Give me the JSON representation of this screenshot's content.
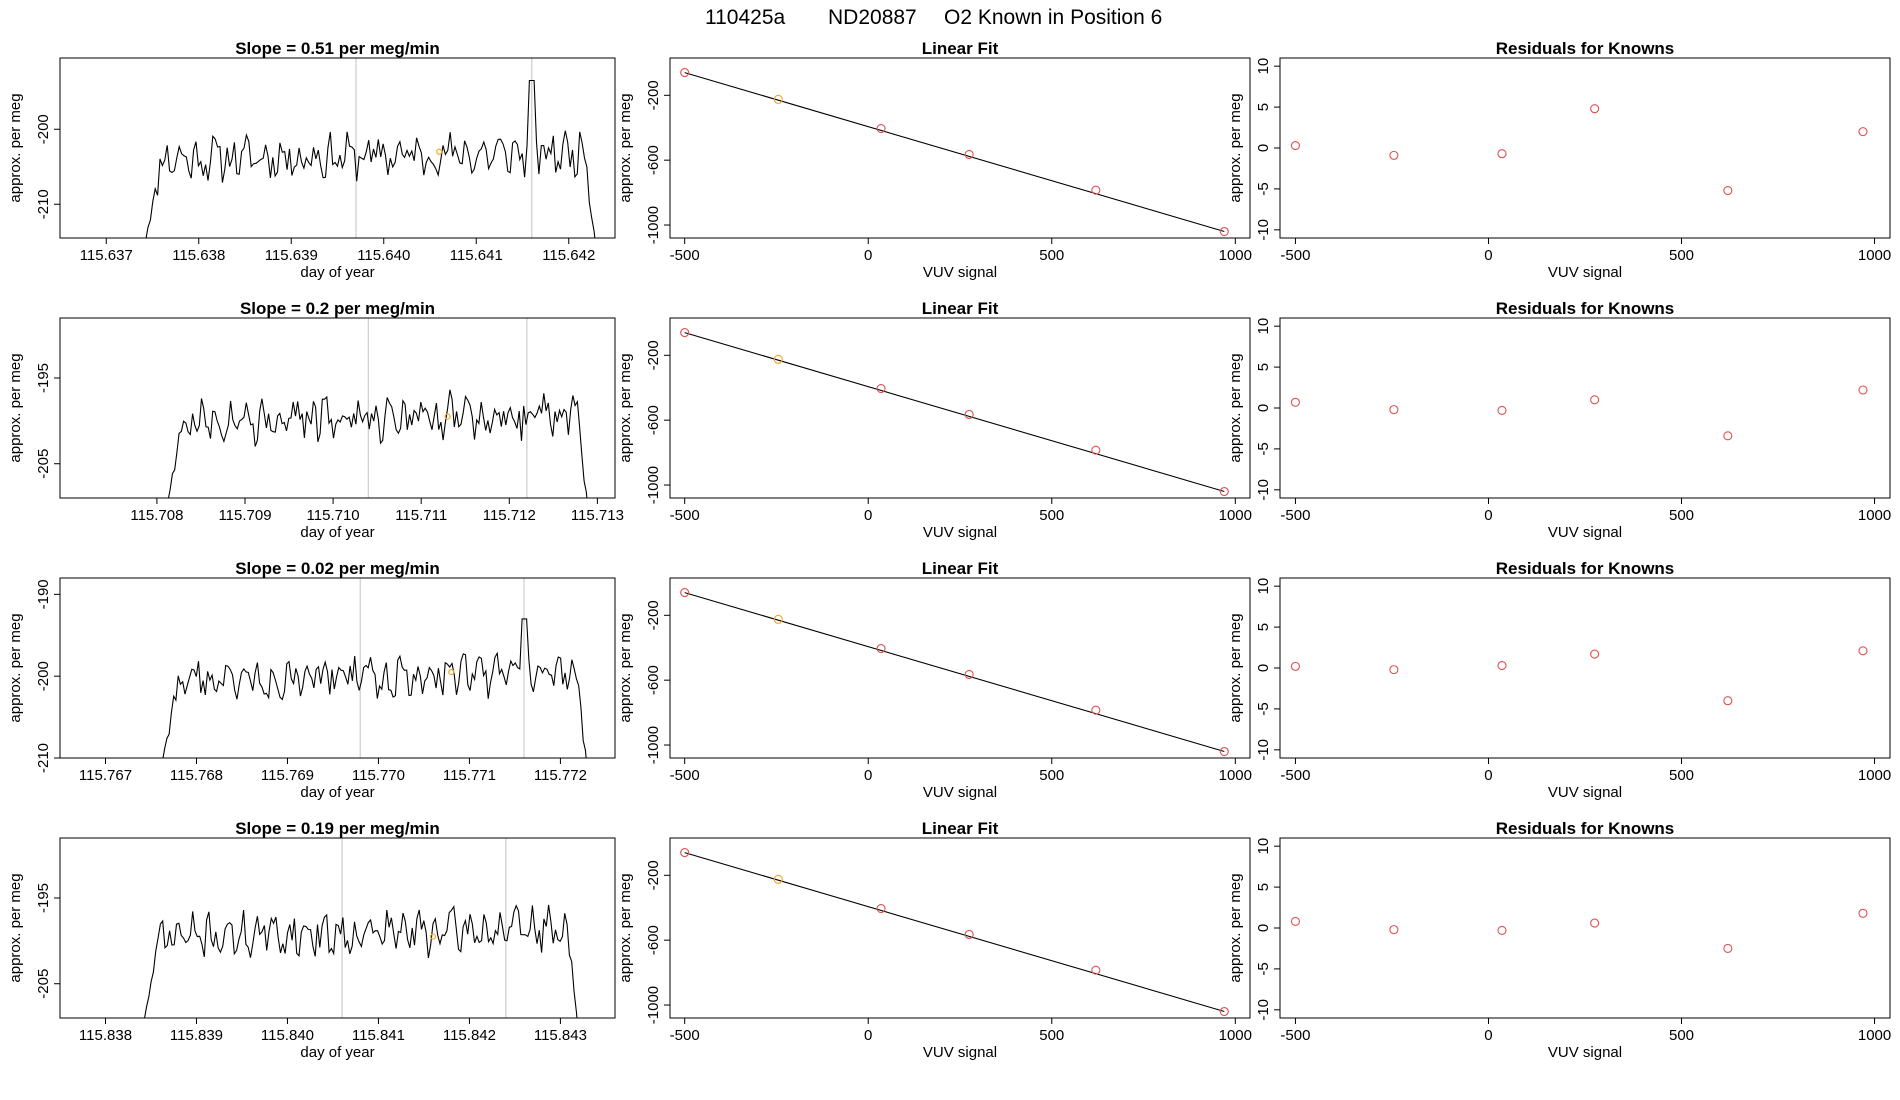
{
  "main_title": [
    "110425a",
    "ND20887",
    "O2 Known in Position  6"
  ],
  "colors": {
    "trace": "#000000",
    "vline": "#cccccc",
    "known_point": "#f5a623",
    "residual_point": "#e05050",
    "fit_line": "#000000"
  },
  "chart_data": [
    {
      "type": "line",
      "panel": "timeseries",
      "row": 1,
      "title": "Slope =  0.51  per meg/min",
      "xlabel": "day of year",
      "ylabel": "approx. per meg",
      "xlim": [
        115.6365,
        115.6425
      ],
      "ylim": [
        -214.5,
        -190.5
      ],
      "xticks": [
        "115.637",
        "115.638",
        "115.639",
        "115.640",
        "115.641",
        "115.642"
      ],
      "yticks": [
        "-200",
        "-210"
      ],
      "start": 115.6374,
      "end": 115.6423,
      "baseline": -204,
      "amplitude": 2.3,
      "seed": 11,
      "spike": {
        "x": 115.6416,
        "y": -193.5
      },
      "vlines": [
        115.6397,
        115.6416
      ],
      "marker": {
        "x": 115.6406,
        "y": -203
      }
    },
    {
      "type": "bar",
      "panel": "linear_fit",
      "row": 1,
      "title": "Linear Fit",
      "xlabel": "VUV signal",
      "ylabel": "approx. per meg",
      "xlim": [
        -540,
        1040
      ],
      "ylim": [
        -1080,
        30
      ],
      "xticks": [
        "-500",
        "0",
        "500",
        "1000"
      ],
      "yticks": [
        "-200",
        "-600",
        "-1000"
      ],
      "x": [
        -500,
        -245,
        35,
        275,
        620,
        970
      ],
      "y": [
        -60,
        -225,
        -405,
        -565,
        -785,
        -1040
      ],
      "highlight": 1
    },
    {
      "type": "scatter",
      "panel": "residuals",
      "row": 1,
      "title": "Residuals for Knowns",
      "xlabel": "VUV signal",
      "ylabel": "approx. per meg",
      "xlim": [
        -540,
        1040
      ],
      "ylim": [
        -11,
        11
      ],
      "xticks": [
        "-500",
        "0",
        "500",
        "1000"
      ],
      "yticks": [
        "10",
        "5",
        "0",
        "-5",
        "-10"
      ],
      "x": [
        -500,
        -245,
        35,
        275,
        620,
        970
      ],
      "y": [
        0.3,
        -0.9,
        -0.7,
        4.8,
        -5.2,
        2.0
      ]
    },
    {
      "type": "line",
      "panel": "timeseries",
      "row": 2,
      "title": "Slope =  0.2  per meg/min",
      "xlabel": "day of year",
      "ylabel": "approx. per meg",
      "xlim": [
        115.7069,
        115.7132
      ],
      "ylim": [
        -209,
        -188
      ],
      "xticks": [
        "115.708",
        "115.709",
        "115.710",
        "115.711",
        "115.712",
        "115.713"
      ],
      "yticks": [
        "-195",
        "-205"
      ],
      "start": 115.7081,
      "end": 115.7129,
      "baseline": -200,
      "amplitude": 2.0,
      "seed": 27,
      "spike": null,
      "vlines": [
        115.7104,
        115.7122
      ],
      "marker": {
        "x": 115.7113,
        "y": -199.5
      }
    },
    {
      "type": "bar",
      "panel": "linear_fit",
      "row": 2,
      "title": "Linear Fit",
      "xlabel": "VUV signal",
      "ylabel": "approx. per meg",
      "xlim": [
        -540,
        1040
      ],
      "ylim": [
        -1080,
        30
      ],
      "xticks": [
        "-500",
        "0",
        "500",
        "1000"
      ],
      "yticks": [
        "-200",
        "-600",
        "-1000"
      ],
      "x": [
        -500,
        -245,
        35,
        275,
        620,
        970
      ],
      "y": [
        -60,
        -225,
        -405,
        -565,
        -785,
        -1040
      ],
      "highlight": 1
    },
    {
      "type": "scatter",
      "panel": "residuals",
      "row": 2,
      "title": "Residuals for Knowns",
      "xlabel": "VUV signal",
      "ylabel": "approx. per meg",
      "xlim": [
        -540,
        1040
      ],
      "ylim": [
        -11,
        11
      ],
      "xticks": [
        "-500",
        "0",
        "500",
        "1000"
      ],
      "yticks": [
        "10",
        "5",
        "0",
        "-5",
        "-10"
      ],
      "x": [
        -500,
        -245,
        35,
        275,
        620,
        970
      ],
      "y": [
        0.7,
        -0.2,
        -0.3,
        1.0,
        -3.4,
        2.2
      ]
    },
    {
      "type": "line",
      "panel": "timeseries",
      "row": 3,
      "title": "Slope =  0.02  per meg/min",
      "xlabel": "day of year",
      "ylabel": "approx. per meg",
      "xlim": [
        115.7665,
        115.7726
      ],
      "ylim": [
        -210,
        -188
      ],
      "xticks": [
        "115.767",
        "115.768",
        "115.769",
        "115.770",
        "115.771",
        "115.772"
      ],
      "yticks": [
        "-190",
        "-200",
        "-210"
      ],
      "start": 115.7676,
      "end": 115.7723,
      "baseline": -200.5,
      "amplitude": 1.9,
      "seed": 43,
      "spike": {
        "x": 115.7716,
        "y": -193
      },
      "vlines": [
        115.7698,
        115.7716
      ],
      "marker": {
        "x": 115.7708,
        "y": -199.5
      }
    },
    {
      "type": "bar",
      "panel": "linear_fit",
      "row": 3,
      "title": "Linear Fit",
      "xlabel": "VUV signal",
      "ylabel": "approx. per meg",
      "xlim": [
        -540,
        1040
      ],
      "ylim": [
        -1080,
        30
      ],
      "xticks": [
        "-500",
        "0",
        "500",
        "1000"
      ],
      "yticks": [
        "-200",
        "-600",
        "-1000"
      ],
      "x": [
        -500,
        -245,
        35,
        275,
        620,
        970
      ],
      "y": [
        -60,
        -225,
        -405,
        -565,
        -785,
        -1040
      ],
      "highlight": 1
    },
    {
      "type": "scatter",
      "panel": "residuals",
      "row": 3,
      "title": "Residuals for Knowns",
      "xlabel": "VUV signal",
      "ylabel": "approx. per meg",
      "xlim": [
        -540,
        1040
      ],
      "ylim": [
        -11,
        11
      ],
      "xticks": [
        "-500",
        "0",
        "500",
        "1000"
      ],
      "yticks": [
        "10",
        "5",
        "0",
        "-5",
        "-10"
      ],
      "x": [
        -500,
        -245,
        35,
        275,
        620,
        970
      ],
      "y": [
        0.2,
        -0.2,
        0.3,
        1.7,
        -4.0,
        2.1
      ]
    },
    {
      "type": "line",
      "panel": "timeseries",
      "row": 4,
      "title": "Slope =  0.19  per meg/min",
      "xlabel": "day of year",
      "ylabel": "approx. per meg",
      "xlim": [
        115.8375,
        115.8436
      ],
      "ylim": [
        -209,
        -188
      ],
      "xticks": [
        "115.838",
        "115.839",
        "115.840",
        "115.841",
        "115.842",
        "115.843"
      ],
      "yticks": [
        "-195",
        "-205"
      ],
      "start": 115.8384,
      "end": 115.8432,
      "baseline": -199.5,
      "amplitude": 1.9,
      "seed": 71,
      "spike": null,
      "vlines": [
        115.8406,
        115.8424
      ],
      "marker": {
        "x": 115.8416,
        "y": -199.5
      }
    },
    {
      "type": "bar",
      "panel": "linear_fit",
      "row": 4,
      "title": "Linear Fit",
      "xlabel": "VUV signal",
      "ylabel": "approx. per meg",
      "xlim": [
        -540,
        1040
      ],
      "ylim": [
        -1080,
        30
      ],
      "xticks": [
        "-500",
        "0",
        "500",
        "1000"
      ],
      "yticks": [
        "-200",
        "-600",
        "-1000"
      ],
      "x": [
        -500,
        -245,
        35,
        275,
        620,
        970
      ],
      "y": [
        -60,
        -225,
        -405,
        -565,
        -785,
        -1040
      ],
      "highlight": 1
    },
    {
      "type": "scatter",
      "panel": "residuals",
      "row": 4,
      "title": "Residuals for Knowns",
      "xlabel": "VUV signal",
      "ylabel": "approx. per meg",
      "xlim": [
        -540,
        1040
      ],
      "ylim": [
        -11,
        11
      ],
      "xticks": [
        "-500",
        "0",
        "500",
        "1000"
      ],
      "yticks": [
        "10",
        "5",
        "0",
        "-5",
        "-10"
      ],
      "x": [
        -500,
        -245,
        35,
        275,
        620,
        970
      ],
      "y": [
        0.8,
        -0.2,
        -0.3,
        0.6,
        -2.5,
        1.8
      ]
    }
  ]
}
